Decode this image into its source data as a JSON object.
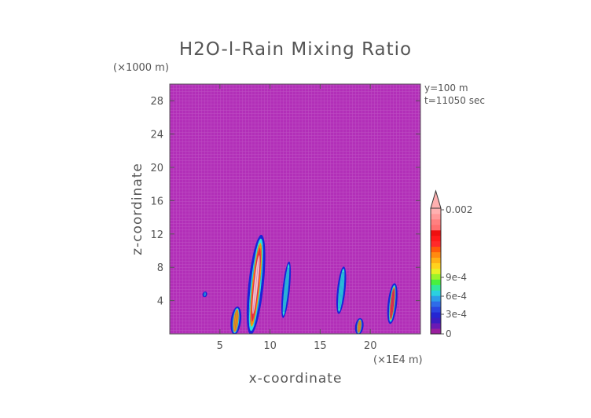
{
  "chart_data": {
    "type": "heatmap",
    "title": "H2O-l-Rain Mixing Ratio",
    "xlabel": "x-coordinate",
    "ylabel": "z-coordinate",
    "x_unit": "(×1E4 m)",
    "y_unit": "(×1000 m)",
    "xlim": [
      0,
      25
    ],
    "ylim": [
      0,
      30
    ],
    "x_ticks": [
      5,
      10,
      15,
      20
    ],
    "y_ticks": [
      4,
      8,
      12,
      16,
      20,
      24,
      28
    ],
    "info_lines": [
      "y=100 m",
      "t=11050 sec"
    ],
    "background_color": "#b22fb8",
    "colorbar": {
      "tick_labels": [
        "0",
        "3e-4",
        "6e-4",
        "9e-4",
        "0.002"
      ],
      "tick_values": [
        0,
        0.0003,
        0.0006,
        0.0009,
        0.002
      ],
      "max_triangle": true
    },
    "rain_cells": [
      {
        "x_center": 8.6,
        "z_base": 0.0,
        "z_top": 11.8,
        "width": 1.3,
        "max": 0.002
      },
      {
        "x_center": 6.6,
        "z_base": 0.0,
        "z_top": 3.2,
        "width": 0.8,
        "max": 0.0008
      },
      {
        "x_center": 11.6,
        "z_base": 2.0,
        "z_top": 8.6,
        "width": 0.5,
        "max": 0.0004
      },
      {
        "x_center": 17.1,
        "z_base": 2.5,
        "z_top": 8.0,
        "width": 0.6,
        "max": 0.0005
      },
      {
        "x_center": 18.9,
        "z_base": 0.0,
        "z_top": 1.8,
        "width": 0.6,
        "max": 0.0007
      },
      {
        "x_center": 22.2,
        "z_base": 1.3,
        "z_top": 6.0,
        "width": 0.7,
        "max": 0.0013
      },
      {
        "x_center": 3.5,
        "z_base": 4.5,
        "z_top": 5.0,
        "width": 0.2,
        "max": 0.0002
      }
    ]
  }
}
